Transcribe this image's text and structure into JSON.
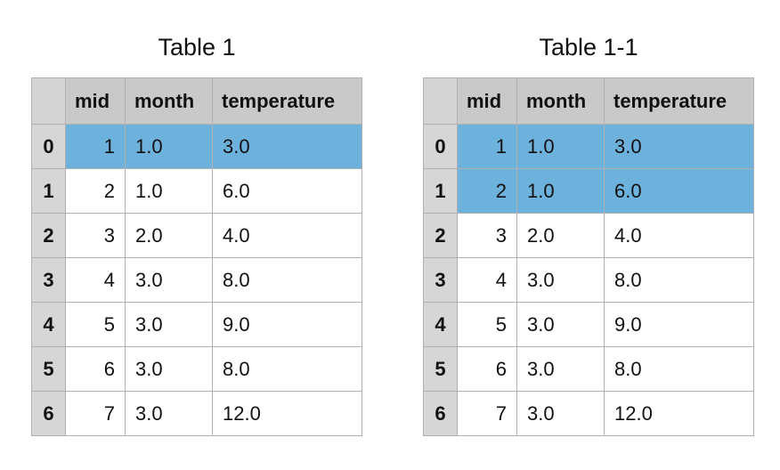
{
  "tables": [
    {
      "title": "Table 1",
      "columns": [
        "mid",
        "month",
        "temperature"
      ],
      "rows": [
        {
          "index": "0",
          "mid": "1",
          "month": "1.0",
          "temperature": "3.0",
          "highlighted": true
        },
        {
          "index": "1",
          "mid": "2",
          "month": "1.0",
          "temperature": "6.0",
          "highlighted": false
        },
        {
          "index": "2",
          "mid": "3",
          "month": "2.0",
          "temperature": "4.0",
          "highlighted": false
        },
        {
          "index": "3",
          "mid": "4",
          "month": "3.0",
          "temperature": "8.0",
          "highlighted": false
        },
        {
          "index": "4",
          "mid": "5",
          "month": "3.0",
          "temperature": "9.0",
          "highlighted": false
        },
        {
          "index": "5",
          "mid": "6",
          "month": "3.0",
          "temperature": "8.0",
          "highlighted": false
        },
        {
          "index": "6",
          "mid": "7",
          "month": "3.0",
          "temperature": "12.0",
          "highlighted": false
        }
      ]
    },
    {
      "title": "Table 1-1",
      "columns": [
        "mid",
        "month",
        "temperature"
      ],
      "rows": [
        {
          "index": "0",
          "mid": "1",
          "month": "1.0",
          "temperature": "3.0",
          "highlighted": true
        },
        {
          "index": "1",
          "mid": "2",
          "month": "1.0",
          "temperature": "6.0",
          "highlighted": true
        },
        {
          "index": "2",
          "mid": "3",
          "month": "2.0",
          "temperature": "4.0",
          "highlighted": false
        },
        {
          "index": "3",
          "mid": "4",
          "month": "3.0",
          "temperature": "8.0",
          "highlighted": false
        },
        {
          "index": "4",
          "mid": "5",
          "month": "3.0",
          "temperature": "9.0",
          "highlighted": false
        },
        {
          "index": "5",
          "mid": "6",
          "month": "3.0",
          "temperature": "8.0",
          "highlighted": false
        },
        {
          "index": "6",
          "mid": "7",
          "month": "3.0",
          "temperature": "12.0",
          "highlighted": false
        }
      ]
    }
  ],
  "colors": {
    "header_bg": "#c9c9c9",
    "index_bg": "#d6d6d6",
    "highlight_bg": "#6db2dd",
    "grid_line": "#b0b0b0"
  }
}
